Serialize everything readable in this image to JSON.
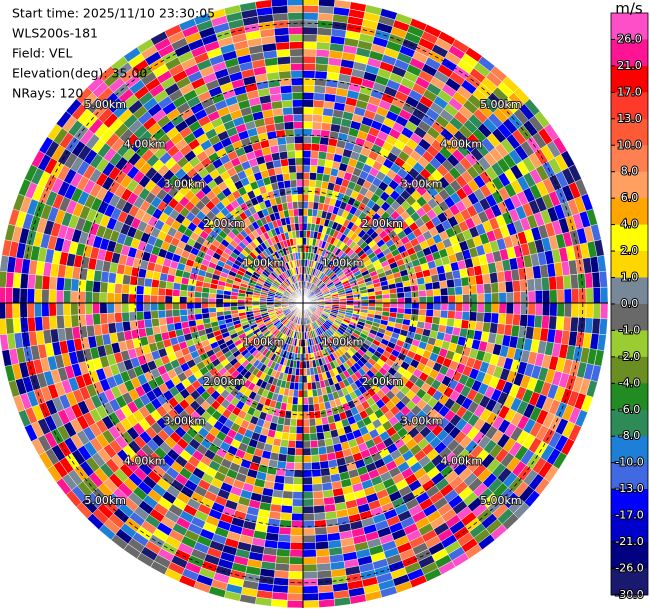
{
  "chart_data": {
    "type": "ppi",
    "info": [
      "Start time: 2025/11/10 23:30:05",
      "WLS200s-181",
      "Field: VEL",
      "Elevation(deg): 35.00",
      "NRays: 120"
    ],
    "rlim": [
      0,
      5.45
    ],
    "rings": [
      {
        "value": 1,
        "label": "1.00km"
      },
      {
        "value": 2,
        "label": "2.00km"
      },
      {
        "value": 3,
        "label": "3.00km"
      },
      {
        "value": 4,
        "label": "4.00km"
      },
      {
        "value": 5,
        "label": "5.00km"
      }
    ],
    "colorbar": {
      "unit": "m/s",
      "ticks": [
        {
          "value": 26,
          "label": "26.0"
        },
        {
          "value": 21,
          "label": "21.0"
        },
        {
          "value": 17,
          "label": "17.0"
        },
        {
          "value": 13,
          "label": "13.0"
        },
        {
          "value": 10,
          "label": "10.0"
        },
        {
          "value": 8,
          "label": "8.0"
        },
        {
          "value": 6,
          "label": "6.0"
        },
        {
          "value": 4,
          "label": "4.0"
        },
        {
          "value": 2,
          "label": "2.0"
        },
        {
          "value": 1,
          "label": "1.0"
        },
        {
          "value": 0,
          "label": "0.0"
        },
        {
          "value": -1,
          "label": "-1.0"
        },
        {
          "value": -2,
          "label": "-2.0"
        },
        {
          "value": -4,
          "label": "-4.0"
        },
        {
          "value": -6,
          "label": "-6.0"
        },
        {
          "value": -8,
          "label": "-8.0"
        },
        {
          "value": -10,
          "label": "-10.0"
        },
        {
          "value": -13,
          "label": "-13.0"
        },
        {
          "value": -17,
          "label": "-17.0"
        },
        {
          "value": -21,
          "label": "-21.0"
        },
        {
          "value": -26,
          "label": "-26.0"
        },
        {
          "value": -30,
          "label": "-30.0"
        }
      ],
      "colors": [
        "#ff4fc8",
        "#ff1493",
        "#ff0000",
        "#ff3a2a",
        "#ff5a36",
        "#ff7f50",
        "#ffa060",
        "#ffa500",
        "#ffff00",
        "#ffd700",
        "#778899",
        "#696969",
        "#9acd32",
        "#6b8e23",
        "#228b22",
        "#2e8b57",
        "#1e7fd8",
        "#4169e1",
        "#0000ff",
        "#0000cd",
        "#000080",
        "#191970"
      ]
    }
  }
}
